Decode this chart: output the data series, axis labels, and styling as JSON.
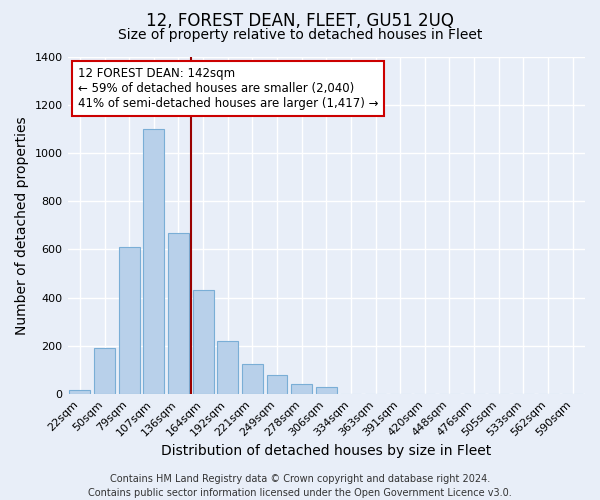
{
  "title": "12, FOREST DEAN, FLEET, GU51 2UQ",
  "subtitle": "Size of property relative to detached houses in Fleet",
  "xlabel": "Distribution of detached houses by size in Fleet",
  "ylabel": "Number of detached properties",
  "bar_color": "#b8d0ea",
  "bar_edge_color": "#7aaed6",
  "categories": [
    "22sqm",
    "50sqm",
    "79sqm",
    "107sqm",
    "136sqm",
    "164sqm",
    "192sqm",
    "221sqm",
    "249sqm",
    "278sqm",
    "306sqm",
    "334sqm",
    "363sqm",
    "391sqm",
    "420sqm",
    "448sqm",
    "476sqm",
    "505sqm",
    "533sqm",
    "562sqm",
    "590sqm"
  ],
  "values": [
    15,
    190,
    610,
    1100,
    670,
    430,
    220,
    125,
    80,
    40,
    30,
    0,
    0,
    0,
    0,
    0,
    0,
    0,
    0,
    0,
    0
  ],
  "ylim": [
    0,
    1400
  ],
  "yticks": [
    0,
    200,
    400,
    600,
    800,
    1000,
    1200,
    1400
  ],
  "vline_x": 4.5,
  "vline_color": "#990000",
  "annotation_text": "12 FOREST DEAN: 142sqm\n← 59% of detached houses are smaller (2,040)\n41% of semi-detached houses are larger (1,417) →",
  "annotation_box_color": "#ffffff",
  "annotation_box_edge": "#cc0000",
  "footer_line1": "Contains HM Land Registry data © Crown copyright and database right 2024.",
  "footer_line2": "Contains public sector information licensed under the Open Government Licence v3.0.",
  "background_color": "#e8eef8",
  "plot_bg_color": "#e8eef8",
  "grid_color": "#ffffff",
  "title_fontsize": 12,
  "subtitle_fontsize": 10,
  "axis_label_fontsize": 10,
  "tick_fontsize": 8,
  "footer_fontsize": 7,
  "ann_fontsize": 8.5
}
